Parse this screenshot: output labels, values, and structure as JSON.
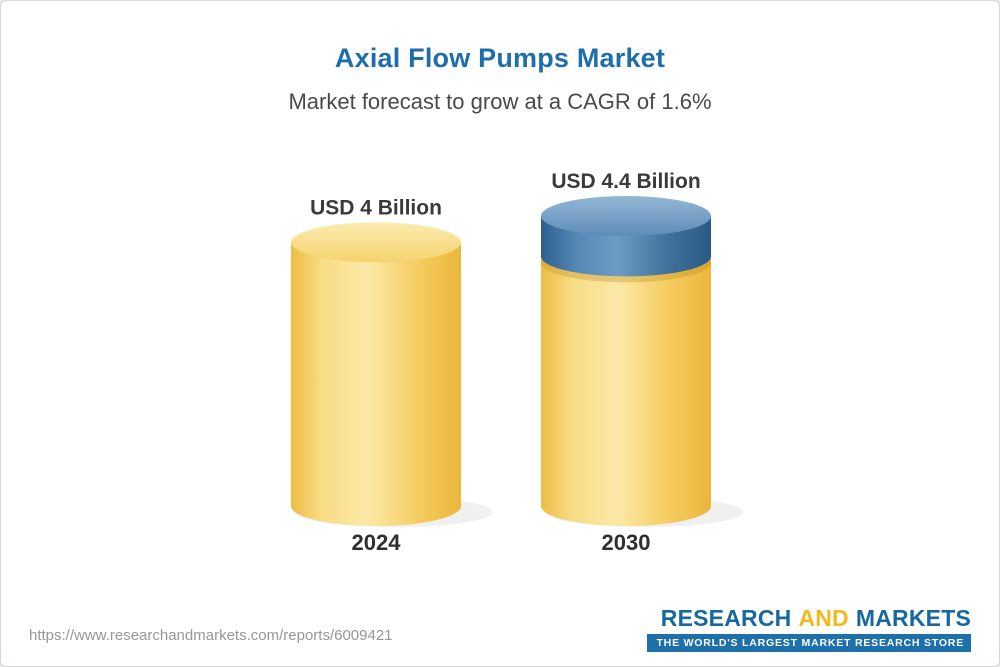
{
  "header": {
    "title": "Axial Flow Pumps Market",
    "subtitle": "Market forecast to grow at a CAGR of 1.6%"
  },
  "chart_data": {
    "type": "bar",
    "style": "3d-cylinder",
    "title": "Axial Flow Pumps Market",
    "subtitle": "Market forecast to grow at a CAGR of 1.6%",
    "cagr_percent": 1.6,
    "unit": "USD Billion",
    "categories": [
      "2024",
      "2030"
    ],
    "values": [
      4,
      4.4
    ],
    "value_labels": [
      "USD 4 Billion",
      "USD 4.4 Billion"
    ],
    "ylim": [
      0,
      4.4
    ],
    "grid": false,
    "legend": "none",
    "bar_colors": [
      "#F6CE63",
      "#F6CE63"
    ],
    "cap_colors": [
      null,
      "#39719F"
    ]
  },
  "footer": {
    "url": "https://www.researchandmarkets.com/reports/6009421",
    "logo_research": "RESEARCH",
    "logo_and": "AND",
    "logo_markets": "MARKETS",
    "tagline": "THE WORLD'S LARGEST MARKET RESEARCH STORE"
  },
  "colors": {
    "title_blue": "#1E6EAC",
    "subtitle_gray": "#4A4A4A",
    "bar_yellow": "#F6CE63",
    "cap_blue": "#39719F",
    "logo_blue": "#16689F",
    "logo_gold": "#F5B81C",
    "tagline_bar_blue": "#1E70AB",
    "url_gray": "#979797"
  }
}
